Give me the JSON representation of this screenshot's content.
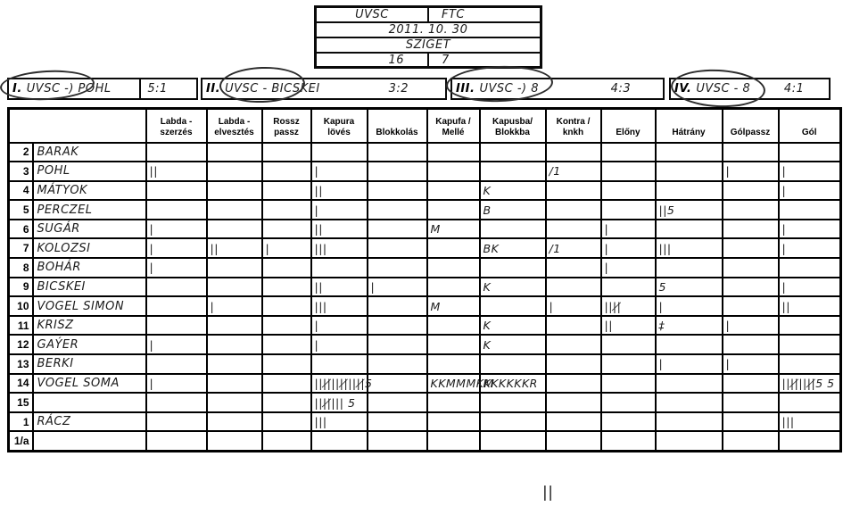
{
  "scoreboard": {
    "home_team": "UVSC",
    "away_team": "FTC",
    "date": "2011. 10. 30",
    "venue": "SZIGET",
    "home_score": "16",
    "away_score": "7"
  },
  "quarters": [
    {
      "numeral": "I.",
      "label": "UVSC -) POHL",
      "score": "5:1"
    },
    {
      "numeral": "II.",
      "label": "UVSC - BICSKEI",
      "score": "3:2"
    },
    {
      "numeral": "III.",
      "label": "UVSC -) 8",
      "score": "4:3"
    },
    {
      "numeral": "IV.",
      "label": "UVSC - 8",
      "score": "4:1"
    }
  ],
  "table": {
    "columns": [
      "Labda - szerzés",
      "Labda - elvesztés",
      "Rossz passz",
      "Kapura lövés",
      "Blokkolás",
      "Kapufa / Mellé",
      "Kapusba/ Blokkba",
      "Kontra / knkh",
      "Előny",
      "Hátrány",
      "Gólpassz",
      "Gól"
    ],
    "rows": [
      {
        "num": "2",
        "name": "BARAK",
        "cells": [
          "",
          "",
          "",
          "",
          "",
          "",
          "",
          "",
          "",
          "",
          "",
          ""
        ]
      },
      {
        "num": "3",
        "name": "POHL",
        "cells": [
          "||",
          "",
          "",
          "|",
          "",
          "",
          "",
          "/1",
          "",
          "",
          "|",
          "|"
        ]
      },
      {
        "num": "4",
        "name": "MÁTYOK",
        "cells": [
          "",
          "",
          "",
          "||",
          "",
          "",
          "K",
          "",
          "",
          "",
          "",
          "|"
        ]
      },
      {
        "num": "5",
        "name": "PERCZEL",
        "cells": [
          "",
          "",
          "",
          "|",
          "",
          "",
          "B",
          "",
          "",
          "||5",
          "",
          ""
        ]
      },
      {
        "num": "6",
        "name": "SUGÁR",
        "cells": [
          "|",
          "",
          "",
          "||",
          "",
          "M",
          "",
          "",
          "|",
          "",
          "",
          "|"
        ]
      },
      {
        "num": "7",
        "name": "KOLOZSI",
        "cells": [
          "|",
          "||",
          "|",
          "|||",
          "",
          "",
          "BK",
          "/1",
          "|",
          "|||",
          "",
          "|"
        ]
      },
      {
        "num": "8",
        "name": "BOHÁR",
        "cells": [
          "|",
          "",
          "",
          "",
          "",
          "",
          "",
          "",
          "|",
          "",
          "",
          ""
        ]
      },
      {
        "num": "9",
        "name": "BICSKEI",
        "cells": [
          "",
          "",
          "",
          "||",
          "|",
          "",
          "K",
          "",
          "",
          "5",
          "",
          "|"
        ]
      },
      {
        "num": "10",
        "name": "VOGEL SIMON",
        "cells": [
          "",
          "|",
          "",
          "|||",
          "",
          "M",
          "",
          "|",
          "||||̸",
          "|",
          "",
          "||"
        ]
      },
      {
        "num": "11",
        "name": "KRISZ",
        "cells": [
          "",
          "",
          "",
          "|",
          "",
          "",
          "K",
          "",
          "||",
          "‡",
          "|",
          ""
        ]
      },
      {
        "num": "12",
        "name": "GAÝER",
        "cells": [
          "|",
          "",
          "",
          "|",
          "",
          "",
          "K",
          "",
          "",
          "",
          "",
          ""
        ]
      },
      {
        "num": "13",
        "name": "BERKI",
        "cells": [
          "",
          "",
          "",
          "",
          "",
          "",
          "",
          "",
          "",
          "|",
          "|",
          ""
        ]
      },
      {
        "num": "14",
        "name": "VOGEL SOMA",
        "cells": [
          "|",
          "",
          "",
          "||||̸||||̸||||̸5",
          "",
          "KKMMMKM",
          "KKKKKKR",
          "",
          "",
          "",
          "",
          "||||̸||||̸5 5"
        ]
      },
      {
        "num": "15",
        "name": "",
        "cells": [
          "",
          "",
          "",
          "||||̸|||  5",
          "",
          "",
          "",
          "",
          "",
          "",
          "",
          ""
        ]
      },
      {
        "num": "1",
        "name": "RÁCZ",
        "cells": [
          "",
          "",
          "",
          "|||",
          "",
          "",
          "",
          "",
          "",
          "",
          "",
          "|||"
        ]
      },
      {
        "num": "1/a",
        "name": "",
        "cells": [
          "",
          "",
          "",
          "",
          "",
          "",
          "",
          "",
          "",
          "",
          "",
          ""
        ]
      }
    ]
  },
  "bottom_tally": "||"
}
